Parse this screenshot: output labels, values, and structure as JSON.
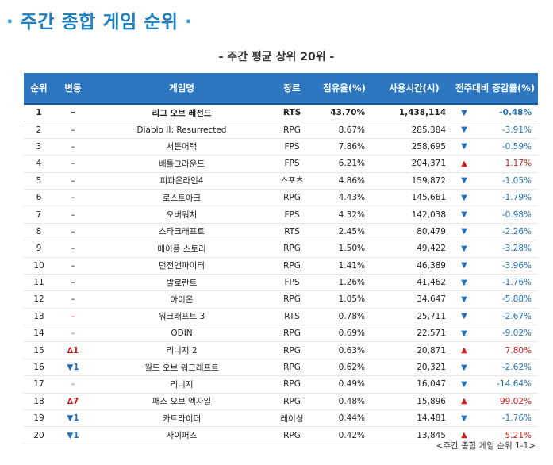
{
  "title_left_dot": "·",
  "title": "주간 종합 게임 순위",
  "title_right_dot": "·",
  "subtitle": "- 주간 평균 상위 20위 -",
  "columns": [
    "순위",
    "변동",
    "게임명",
    "장르",
    "점유율(%)",
    "사용시간(시)",
    "전주대비 증감률(%)"
  ],
  "rows": [
    {
      "rank": "1",
      "change": "–",
      "change_type": "flat",
      "name": "리그 오브 레전드",
      "genre": "RTS",
      "share": "43.70%",
      "hours": "1,438,114",
      "arrow": "▼",
      "dir": "down",
      "rate": "-0.48%"
    },
    {
      "rank": "2",
      "change": "–",
      "change_type": "flat",
      "name": "Diablo II: Resurrected",
      "genre": "RPG",
      "share": "8.67%",
      "hours": "285,384",
      "arrow": "▼",
      "dir": "down",
      "rate": "-3.91%"
    },
    {
      "rank": "3",
      "change": "–",
      "change_type": "flat",
      "name": "서든어택",
      "genre": "FPS",
      "share": "7.86%",
      "hours": "258,695",
      "arrow": "▼",
      "dir": "down",
      "rate": "-0.59%"
    },
    {
      "rank": "4",
      "change": "–",
      "change_type": "flat",
      "name": "배틀그라운드",
      "genre": "FPS",
      "share": "6.21%",
      "hours": "204,371",
      "arrow": "▲",
      "dir": "up",
      "rate": "1.17%"
    },
    {
      "rank": "5",
      "change": "–",
      "change_type": "flat",
      "name": "피파온라인4",
      "genre": "스포츠",
      "share": "4.86%",
      "hours": "159,872",
      "arrow": "▼",
      "dir": "down",
      "rate": "-1.05%"
    },
    {
      "rank": "6",
      "change": "–",
      "change_type": "flat",
      "name": "로스트아크",
      "genre": "RPG",
      "share": "4.43%",
      "hours": "145,661",
      "arrow": "▼",
      "dir": "down",
      "rate": "-1.79%"
    },
    {
      "rank": "7",
      "change": "–",
      "change_type": "flat",
      "name": "오버워치",
      "genre": "FPS",
      "share": "4.32%",
      "hours": "142,038",
      "arrow": "▼",
      "dir": "down",
      "rate": "-0.98%"
    },
    {
      "rank": "8",
      "change": "–",
      "change_type": "flat",
      "name": "스타크래프트",
      "genre": "RTS",
      "share": "2.45%",
      "hours": "80,479",
      "arrow": "▼",
      "dir": "down",
      "rate": "-2.26%"
    },
    {
      "rank": "9",
      "change": "–",
      "change_type": "flat",
      "name": "메이플 스토리",
      "genre": "RPG",
      "share": "1.50%",
      "hours": "49,422",
      "arrow": "▼",
      "dir": "down",
      "rate": "-3.28%"
    },
    {
      "rank": "10",
      "change": "–",
      "change_type": "flat",
      "name": "던전앤파이터",
      "genre": "RPG",
      "share": "1.41%",
      "hours": "46,389",
      "arrow": "▼",
      "dir": "down",
      "rate": "-3.96%"
    },
    {
      "rank": "11",
      "change": "–",
      "change_type": "flat",
      "name": "발로란트",
      "genre": "FPS",
      "share": "1.26%",
      "hours": "41,462",
      "arrow": "▼",
      "dir": "down",
      "rate": "-1.76%"
    },
    {
      "rank": "12",
      "change": "–",
      "change_type": "flat",
      "name": "아이온",
      "genre": "RPG",
      "share": "1.05%",
      "hours": "34,647",
      "arrow": "▼",
      "dir": "down",
      "rate": "-5.88%"
    },
    {
      "rank": "13",
      "change": "–",
      "change_type": "flat-red",
      "name": "워크래프트 3",
      "genre": "RTS",
      "share": "0.78%",
      "hours": "25,711",
      "arrow": "▼",
      "dir": "down",
      "rate": "-2.67%"
    },
    {
      "rank": "14",
      "change": "–",
      "change_type": "flat-blue",
      "name": "ODIN",
      "genre": "RPG",
      "share": "0.69%",
      "hours": "22,571",
      "arrow": "▼",
      "dir": "down",
      "rate": "-9.02%"
    },
    {
      "rank": "15",
      "change": "∆1",
      "change_type": "chg-up",
      "name": "리니지 2",
      "genre": "RPG",
      "share": "0.63%",
      "hours": "20,871",
      "arrow": "▲",
      "dir": "up",
      "rate": "7.80%"
    },
    {
      "rank": "16",
      "change": "▼1",
      "change_type": "chg-down",
      "name": "월드 오브 워크래프트",
      "genre": "RPG",
      "share": "0.62%",
      "hours": "20,321",
      "arrow": "▼",
      "dir": "down",
      "rate": "-2.62%"
    },
    {
      "rank": "17",
      "change": "–",
      "change_type": "flat-blue",
      "name": "리니지",
      "genre": "RPG",
      "share": "0.49%",
      "hours": "16,047",
      "arrow": "▼",
      "dir": "down",
      "rate": "-14.64%"
    },
    {
      "rank": "18",
      "change": "∆7",
      "change_type": "chg-up",
      "name": "패스 오브 엑자일",
      "genre": "RPG",
      "share": "0.48%",
      "hours": "15,896",
      "arrow": "▲",
      "dir": "up",
      "rate": "99.02%"
    },
    {
      "rank": "19",
      "change": "▼1",
      "change_type": "chg-down",
      "name": "카트라이더",
      "genre": "레이싱",
      "share": "0.44%",
      "hours": "14,481",
      "arrow": "▼",
      "dir": "down",
      "rate": "-1.76%"
    },
    {
      "rank": "20",
      "change": "▼1",
      "change_type": "chg-down",
      "name": "사이퍼즈",
      "genre": "RPG",
      "share": "0.42%",
      "hours": "13,845",
      "arrow": "▲",
      "dir": "up",
      "rate": "5.21%"
    }
  ],
  "footer": "<주간 종합 게임 순위 1-1>",
  "colors": {
    "header_bg": "#2c77c0",
    "title": "#1f7fbf",
    "up": "#d01818",
    "down": "#1f6fb8"
  }
}
